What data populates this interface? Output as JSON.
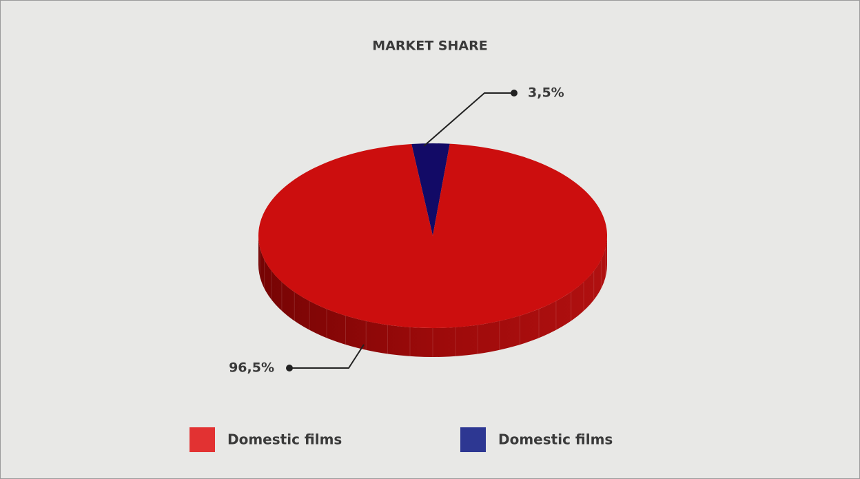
{
  "chart_data": {
    "type": "pie",
    "title": "MARKET SHARE",
    "categories": [
      "Domestic films",
      "Domestic films"
    ],
    "values": [
      96.5,
      3.5
    ],
    "value_labels": [
      "96,5%",
      "3,5%"
    ],
    "colors": [
      "#cc0e0e",
      "#120a66"
    ],
    "legend_colors": [
      "#e23232",
      "#2d3792"
    ]
  }
}
